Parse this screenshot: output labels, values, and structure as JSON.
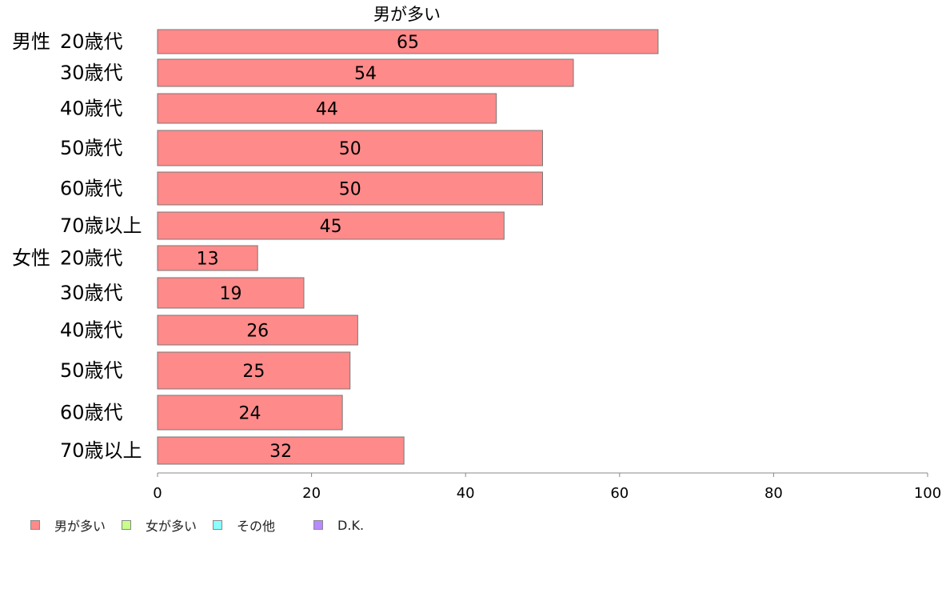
{
  "chart_data": {
    "type": "bar",
    "orientation": "horizontal",
    "title": "男が多い",
    "groups": [
      {
        "label": "男性",
        "categories": [
          "20歳代",
          "30歳代",
          "40歳代",
          "50歳代",
          "60歳代",
          "70歳以上"
        ],
        "values": [
          65,
          54,
          44,
          50,
          50,
          45
        ]
      },
      {
        "label": "女性",
        "categories": [
          "20歳代",
          "30歳代",
          "40歳代",
          "50歳代",
          "60歳代",
          "70歳以上"
        ],
        "values": [
          13,
          19,
          26,
          25,
          24,
          32
        ]
      }
    ],
    "series": [
      {
        "name": "男が多い",
        "color": "#ff8a8a"
      }
    ],
    "xlim": [
      0,
      100
    ],
    "xticks": [
      "0",
      "20",
      "40",
      "60",
      "80",
      "100"
    ],
    "legend": {
      "position": "bottom-left",
      "items": [
        {
          "label": "男が多い",
          "color": "#ff8a8a"
        },
        {
          "label": "女が多い",
          "color": "#c8ff8a"
        },
        {
          "label": "その他",
          "color": "#8affff"
        },
        {
          "label": "D.K.",
          "color": "#b98aff"
        }
      ]
    }
  }
}
